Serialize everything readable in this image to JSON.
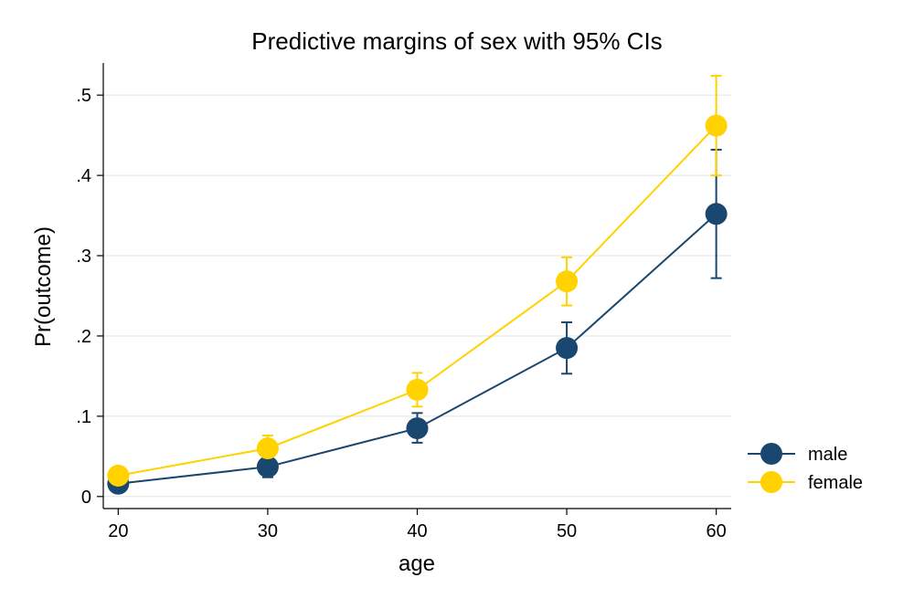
{
  "chart_data": {
    "type": "line",
    "title": "Predictive margins of sex with 95% CIs",
    "xlabel": "age",
    "ylabel": "Pr(outcome)",
    "x": [
      20,
      30,
      40,
      50,
      60
    ],
    "x_tick_labels": [
      "20",
      "30",
      "40",
      "50",
      "60"
    ],
    "y_ticks": [
      0,
      0.1,
      0.2,
      0.3,
      0.4,
      0.5
    ],
    "y_tick_labels": [
      "0",
      ".1",
      ".2",
      ".3",
      ".4",
      ".5"
    ],
    "xlim": [
      19,
      61
    ],
    "ylim": [
      -0.015,
      0.54
    ],
    "grid": true,
    "legend_position": "right",
    "series": [
      {
        "name": "male",
        "color": "#1a476f",
        "values": [
          0.016,
          0.037,
          0.085,
          0.185,
          0.352
        ],
        "ci_lower": [
          0.009,
          0.024,
          0.067,
          0.153,
          0.272
        ],
        "ci_upper": [
          0.023,
          0.05,
          0.104,
          0.217,
          0.432
        ]
      },
      {
        "name": "female",
        "color": "#ffd200",
        "values": [
          0.026,
          0.06,
          0.133,
          0.268,
          0.462
        ],
        "ci_lower": [
          0.019,
          0.044,
          0.112,
          0.238,
          0.4
        ],
        "ci_upper": [
          0.033,
          0.076,
          0.154,
          0.298,
          0.524
        ]
      }
    ]
  }
}
